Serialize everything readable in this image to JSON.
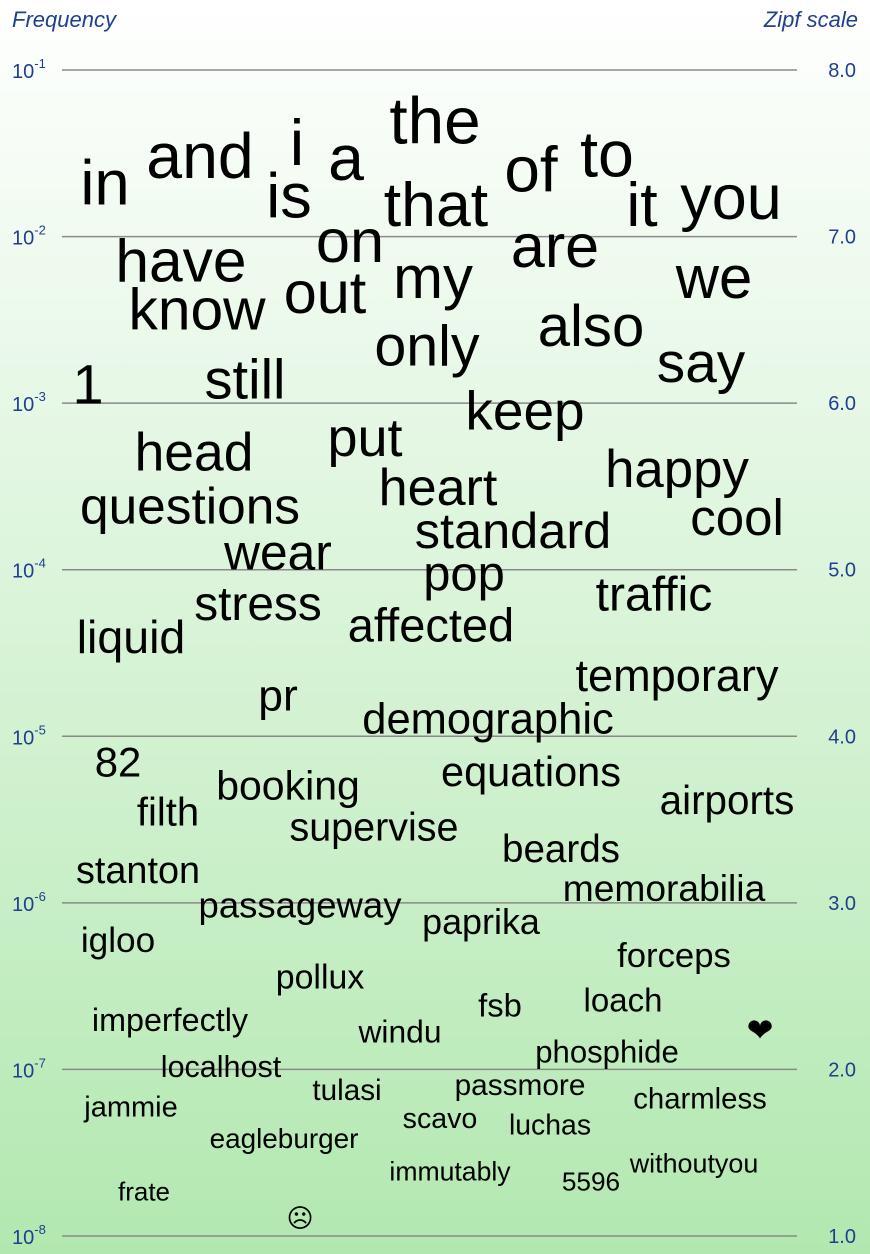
{
  "chart_data": {
    "type": "scatter",
    "left_axis_title": "Frequency",
    "right_axis_title": "Zipf scale",
    "left_ticks": [
      {
        "base": "10",
        "exp": "-1",
        "log10": -1
      },
      {
        "base": "10",
        "exp": "-2",
        "log10": -2
      },
      {
        "base": "10",
        "exp": "-3",
        "log10": -3
      },
      {
        "base": "10",
        "exp": "-4",
        "log10": -4
      },
      {
        "base": "10",
        "exp": "-5",
        "log10": -5
      },
      {
        "base": "10",
        "exp": "-6",
        "log10": -6
      },
      {
        "base": "10",
        "exp": "-7",
        "log10": -7
      },
      {
        "base": "10",
        "exp": "-8",
        "log10": -8
      }
    ],
    "right_ticks": [
      {
        "label": "8.0",
        "value": 8.0
      },
      {
        "label": "7.0",
        "value": 7.0
      },
      {
        "label": "6.0",
        "value": 6.0
      },
      {
        "label": "5.0",
        "value": 5.0
      },
      {
        "label": "4.0",
        "value": 4.0
      },
      {
        "label": "3.0",
        "value": 3.0
      },
      {
        "label": "2.0",
        "value": 2.0
      },
      {
        "label": "1.0",
        "value": 1.0
      }
    ],
    "zipf_range": [
      1.0,
      8.0
    ],
    "grid": true,
    "words": [
      {
        "text": "the",
        "zipf": 7.7
      },
      {
        "text": "and",
        "zipf": 7.49
      },
      {
        "text": "i",
        "zipf": 7.57
      },
      {
        "text": "a",
        "zipf": 7.48
      },
      {
        "text": "to",
        "zipf": 7.5
      },
      {
        "text": "in",
        "zipf": 7.33
      },
      {
        "text": "of",
        "zipf": 7.41
      },
      {
        "text": "that",
        "zipf": 7.2
      },
      {
        "text": "is",
        "zipf": 7.25
      },
      {
        "text": "you",
        "zipf": 7.24
      },
      {
        "text": "it",
        "zipf": 7.2
      },
      {
        "text": "on",
        "zipf": 6.98
      },
      {
        "text": "are",
        "zipf": 6.95
      },
      {
        "text": "have",
        "zipf": 6.86
      },
      {
        "text": "we",
        "zipf": 6.76
      },
      {
        "text": "my",
        "zipf": 6.76
      },
      {
        "text": "out",
        "zipf": 6.67
      },
      {
        "text": "know",
        "zipf": 6.57
      },
      {
        "text": "also",
        "zipf": 6.47
      },
      {
        "text": "only",
        "zipf": 6.35
      },
      {
        "text": "say",
        "zipf": 6.25
      },
      {
        "text": "still",
        "zipf": 6.15
      },
      {
        "text": "1",
        "zipf": 6.12
      },
      {
        "text": "keep",
        "zipf": 5.96
      },
      {
        "text": "put",
        "zipf": 5.8
      },
      {
        "text": "head",
        "zipf": 5.71
      },
      {
        "text": "happy",
        "zipf": 5.61
      },
      {
        "text": "heart",
        "zipf": 5.5
      },
      {
        "text": "questions",
        "zipf": 5.39
      },
      {
        "text": "cool",
        "zipf": 5.32
      },
      {
        "text": "standard",
        "zipf": 5.24
      },
      {
        "text": "wear",
        "zipf": 5.11
      },
      {
        "text": "pop",
        "zipf": 4.98
      },
      {
        "text": "traffic",
        "zipf": 4.86
      },
      {
        "text": "stress",
        "zipf": 4.8
      },
      {
        "text": "affected",
        "zipf": 4.67
      },
      {
        "text": "liquid",
        "zipf": 4.6
      },
      {
        "text": "temporary",
        "zipf": 4.37
      },
      {
        "text": "pr",
        "zipf": 4.25
      },
      {
        "text": "demographic",
        "zipf": 4.11
      },
      {
        "text": "82",
        "zipf": 3.85
      },
      {
        "text": "equations",
        "zipf": 3.79
      },
      {
        "text": "booking",
        "zipf": 3.71
      },
      {
        "text": "airports",
        "zipf": 3.62
      },
      {
        "text": "filth",
        "zipf": 3.55
      },
      {
        "text": "supervise",
        "zipf": 3.46
      },
      {
        "text": "beards",
        "zipf": 3.33
      },
      {
        "text": "stanton",
        "zipf": 3.2
      },
      {
        "text": "memorabilia",
        "zipf": 3.09
      },
      {
        "text": "passageway",
        "zipf": 2.99
      },
      {
        "text": "paprika",
        "zipf": 2.89
      },
      {
        "text": "igloo",
        "zipf": 2.78
      },
      {
        "text": "forceps",
        "zipf": 2.69
      },
      {
        "text": "pollux",
        "zipf": 2.56
      },
      {
        "text": "fsb",
        "zipf": 2.39
      },
      {
        "text": "loach",
        "zipf": 2.42
      },
      {
        "text": "imperfectly",
        "zipf": 2.3
      },
      {
        "text": "windu",
        "zipf": 2.23
      },
      {
        "text": "❤",
        "zipf": 2.24
      },
      {
        "text": "phosphide",
        "zipf": 2.11
      },
      {
        "text": "localhost",
        "zipf": 2.02
      },
      {
        "text": "passmore",
        "zipf": 1.91
      },
      {
        "text": "tulasi",
        "zipf": 1.88
      },
      {
        "text": "charmless",
        "zipf": 1.83
      },
      {
        "text": "jammie",
        "zipf": 1.78
      },
      {
        "text": "scavo",
        "zipf": 1.71
      },
      {
        "text": "luchas",
        "zipf": 1.67
      },
      {
        "text": "eagleburger",
        "zipf": 1.59
      },
      {
        "text": "withoutyou",
        "zipf": 1.44
      },
      {
        "text": "immutably",
        "zipf": 1.39
      },
      {
        "text": "5596",
        "zipf": 1.33
      },
      {
        "text": "frate",
        "zipf": 1.27
      },
      {
        "text": "☹",
        "zipf": 1.11
      }
    ]
  }
}
